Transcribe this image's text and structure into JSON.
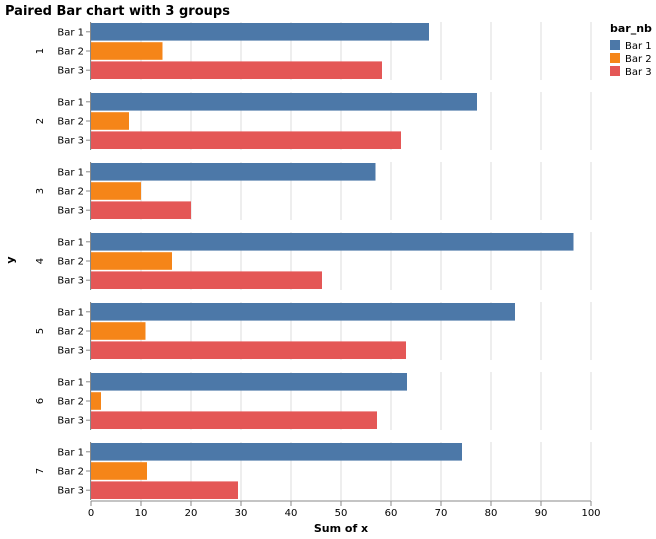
{
  "chart_data": {
    "type": "bar",
    "orientation": "horizontal",
    "title": "Paired Bar chart with 3 groups",
    "xlabel": "Sum of x",
    "ylabel": "y",
    "xlim": [
      0,
      100
    ],
    "x_ticks": [
      0,
      10,
      20,
      30,
      40,
      50,
      60,
      70,
      80,
      90,
      100
    ],
    "grid": true,
    "groups": [
      "1",
      "2",
      "3",
      "4",
      "5",
      "6",
      "7"
    ],
    "bar_labels": [
      "Bar 1",
      "Bar 2",
      "Bar 3"
    ],
    "legend": {
      "title": "bar_nb",
      "placement": "top-right",
      "entries": [
        "Bar 1",
        "Bar 2",
        "Bar 3"
      ]
    },
    "colors": [
      "#4c78a8",
      "#f58518",
      "#e45756"
    ],
    "series": [
      {
        "name": "Bar 1",
        "values": [
          67.6,
          77.2,
          56.9,
          96.5,
          84.8,
          63.2,
          74.2
        ]
      },
      {
        "name": "Bar 2",
        "values": [
          14.3,
          7.6,
          10.0,
          16.2,
          10.9,
          2.0,
          11.2
        ]
      },
      {
        "name": "Bar 3",
        "values": [
          58.2,
          62.0,
          20.0,
          46.2,
          63.0,
          57.2,
          29.4
        ]
      }
    ]
  }
}
